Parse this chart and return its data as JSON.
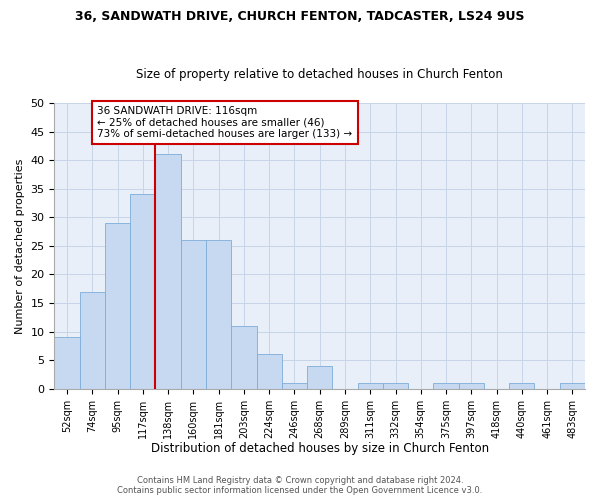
{
  "title1": "36, SANDWATH DRIVE, CHURCH FENTON, TADCASTER, LS24 9US",
  "title2": "Size of property relative to detached houses in Church Fenton",
  "xlabel": "Distribution of detached houses by size in Church Fenton",
  "ylabel": "Number of detached properties",
  "categories": [
    "52sqm",
    "74sqm",
    "95sqm",
    "117sqm",
    "138sqm",
    "160sqm",
    "181sqm",
    "203sqm",
    "224sqm",
    "246sqm",
    "268sqm",
    "289sqm",
    "311sqm",
    "332sqm",
    "354sqm",
    "375sqm",
    "397sqm",
    "418sqm",
    "440sqm",
    "461sqm",
    "483sqm"
  ],
  "values": [
    9,
    17,
    29,
    34,
    41,
    26,
    26,
    11,
    6,
    1,
    4,
    0,
    1,
    1,
    0,
    1,
    1,
    0,
    1,
    0,
    1
  ],
  "bar_color": "#c6d9f0",
  "bar_edge_color": "#7dadd9",
  "bar_width": 1.0,
  "ylim": [
    0,
    50
  ],
  "yticks": [
    0,
    5,
    10,
    15,
    20,
    25,
    30,
    35,
    40,
    45,
    50
  ],
  "grid_color": "#c8d4e8",
  "background_color": "#e8eff8",
  "vline_x": 3.5,
  "vline_color": "#cc0000",
  "annotation_text": "36 SANDWATH DRIVE: 116sqm\n← 25% of detached houses are smaller (46)\n73% of semi-detached houses are larger (133) →",
  "annotation_box_color": "#ffffff",
  "annotation_box_edge_color": "#cc0000",
  "footer1": "Contains HM Land Registry data © Crown copyright and database right 2024.",
  "footer2": "Contains public sector information licensed under the Open Government Licence v3.0."
}
